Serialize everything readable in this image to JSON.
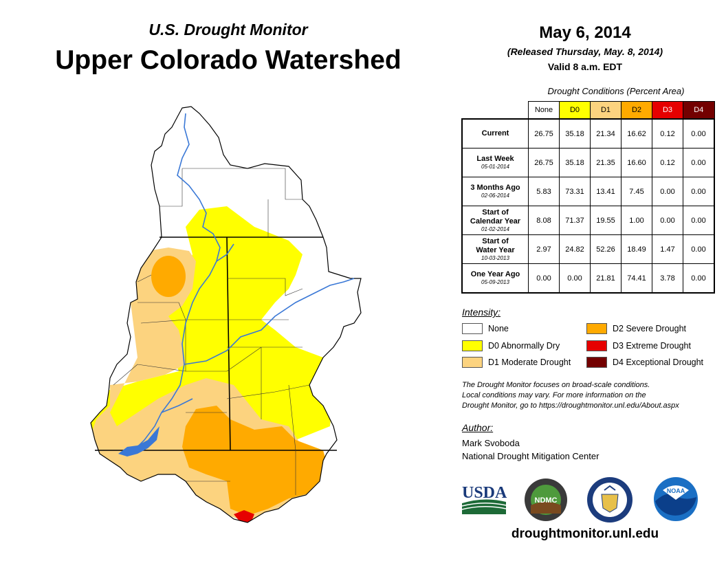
{
  "header": {
    "title_small": "U.S. Drought Monitor",
    "title_big": "Upper Colorado Watershed",
    "date": "May 6, 2014",
    "released": "(Released Thursday, May. 8, 2014)",
    "valid": "Valid 8 a.m. EDT"
  },
  "table": {
    "title": "Drought Conditions (Percent Area)",
    "columns": [
      "None",
      "D0",
      "D1",
      "D2",
      "D3",
      "D4"
    ],
    "column_colors": [
      "#ffffff",
      "#ffff00",
      "#fcd37f",
      "#ffaa00",
      "#e60000",
      "#730000"
    ],
    "rows": [
      {
        "label": "Current",
        "sub": "",
        "values": [
          "26.75",
          "35.18",
          "21.34",
          "16.62",
          "0.12",
          "0.00"
        ]
      },
      {
        "label": "Last Week",
        "sub": "05-01-2014",
        "values": [
          "26.75",
          "35.18",
          "21.35",
          "16.60",
          "0.12",
          "0.00"
        ]
      },
      {
        "label": "3 Months Ago",
        "sub": "02-06-2014",
        "values": [
          "5.83",
          "73.31",
          "13.41",
          "7.45",
          "0.00",
          "0.00"
        ]
      },
      {
        "label": "Start of\nCalendar Year",
        "sub": "01-02-2014",
        "values": [
          "8.08",
          "71.37",
          "19.55",
          "1.00",
          "0.00",
          "0.00"
        ]
      },
      {
        "label": "Start of\nWater Year",
        "sub": "10-03-2013",
        "values": [
          "2.97",
          "24.82",
          "52.26",
          "18.49",
          "1.47",
          "0.00"
        ]
      },
      {
        "label": "One Year Ago",
        "sub": "05-09-2013",
        "values": [
          "0.00",
          "0.00",
          "21.81",
          "74.41",
          "3.78",
          "0.00"
        ]
      }
    ]
  },
  "legend": {
    "heading": "Intensity:",
    "items": [
      {
        "label": "None",
        "color": "#ffffff"
      },
      {
        "label": "D0 Abnormally Dry",
        "color": "#ffff00"
      },
      {
        "label": "D1 Moderate Drought",
        "color": "#fcd37f"
      },
      {
        "label": "D2 Severe Drought",
        "color": "#ffaa00"
      },
      {
        "label": "D3 Extreme Drought",
        "color": "#e60000"
      },
      {
        "label": "D4 Exceptional Drought",
        "color": "#730000"
      }
    ]
  },
  "note": {
    "line1": "The Drought Monitor focuses on broad-scale conditions.",
    "line2": "Local conditions may vary. For more information on the",
    "line3": "Drought Monitor, go to https://droughtmonitor.unl.edu/About.aspx"
  },
  "author": {
    "heading": "Author:",
    "name": "Mark Svoboda",
    "org": "National Drought Mitigation Center"
  },
  "logos": {
    "usda": "USDA",
    "ndmc": "NDMC",
    "noaa": "NOAA"
  },
  "website": "droughtmonitor.unl.edu",
  "map": {
    "river_color": "#3a78d6",
    "boundary_color": "#000000"
  }
}
